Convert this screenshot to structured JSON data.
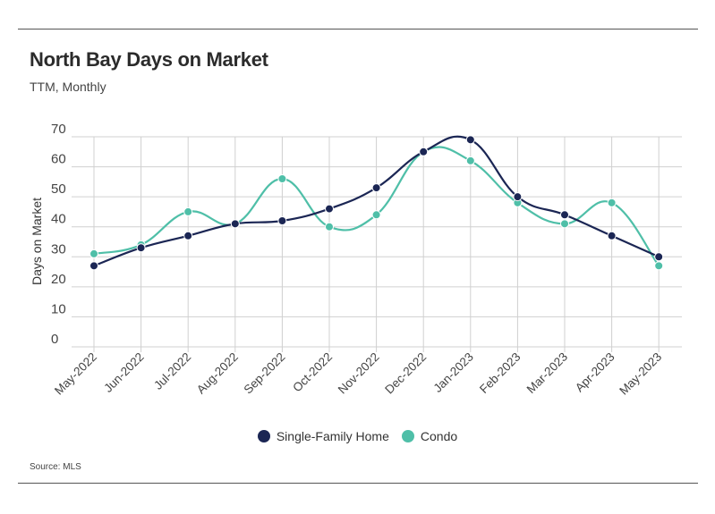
{
  "header": {
    "title": "North Bay Days on Market",
    "subtitle": "TTM, Monthly"
  },
  "footer": {
    "source": "Source:  MLS"
  },
  "colors": {
    "single_family": "#1b2654",
    "condo": "#4fbfa8",
    "grid": "#d0d0d0",
    "axis_text": "#444444"
  },
  "chart_data": {
    "type": "line",
    "categories": [
      "May-2022",
      "Jun-2022",
      "Jul-2022",
      "Aug-2022",
      "Sep-2022",
      "Oct-2022",
      "Nov-2022",
      "Dec-2022",
      "Jan-2023",
      "Feb-2023",
      "Mar-2023",
      "Apr-2023",
      "May-2023"
    ],
    "series": [
      {
        "name": "Single-Family Home",
        "values": [
          27,
          33,
          37,
          41,
          42,
          46,
          53,
          65,
          69,
          50,
          44,
          37,
          30
        ]
      },
      {
        "name": "Condo",
        "values": [
          31,
          34,
          45,
          41,
          56,
          40,
          44,
          65,
          62,
          48,
          41,
          48,
          27
        ]
      }
    ],
    "ylabel": "Days on Market",
    "xlabel": "",
    "ylim": [
      0,
      70
    ],
    "yticks": [
      0,
      10,
      20,
      30,
      40,
      50,
      60,
      70
    ],
    "grid": true,
    "smooth": true,
    "legend": "bottom-center"
  }
}
